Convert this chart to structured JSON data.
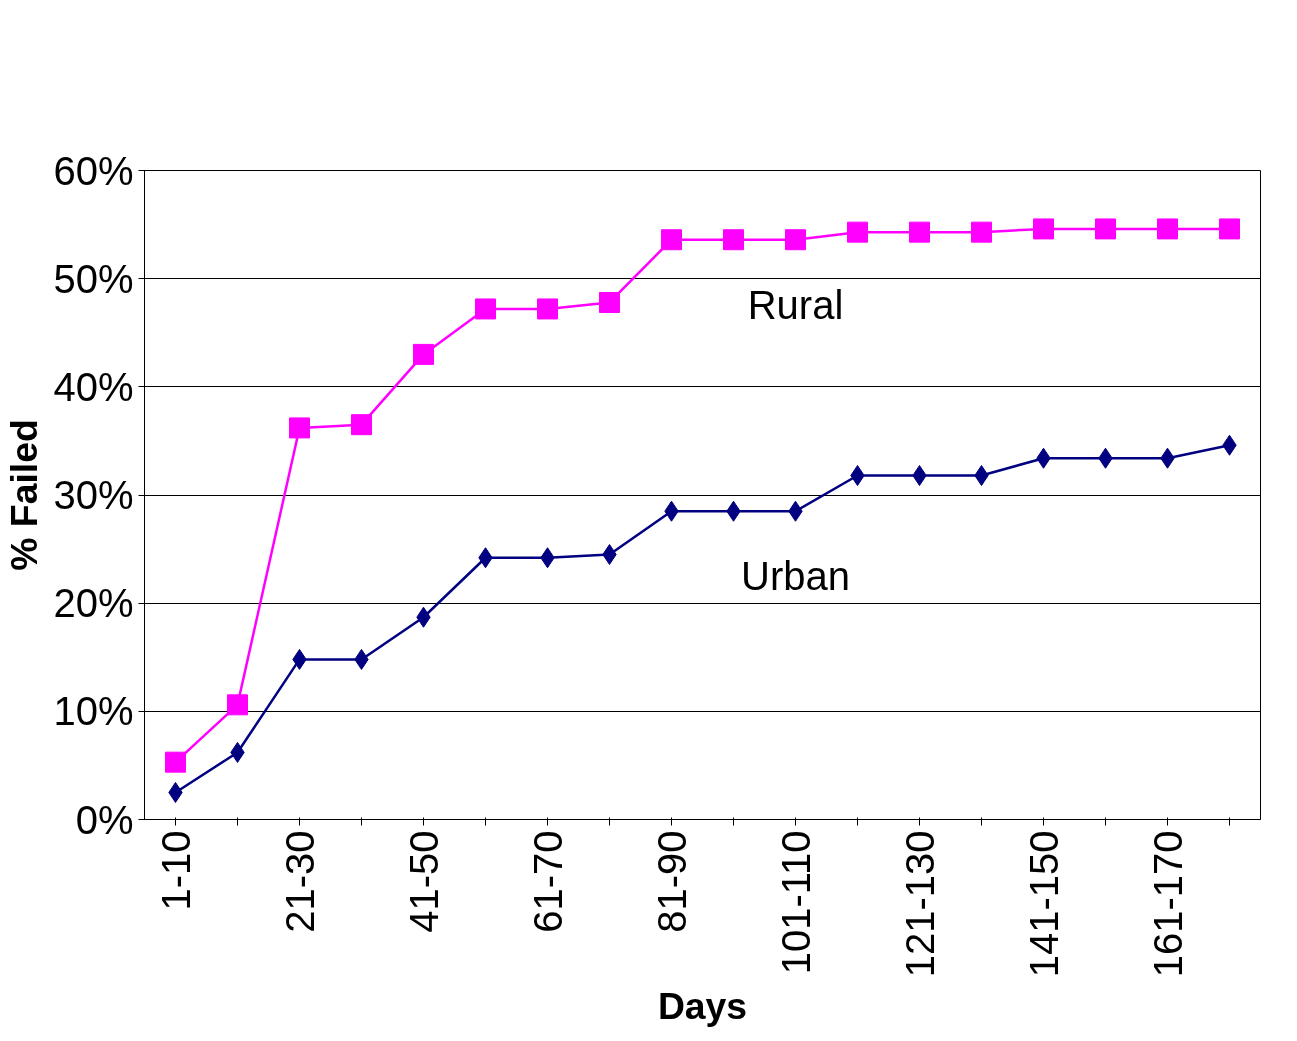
{
  "chart_data": {
    "type": "line",
    "xlabel": "Days",
    "ylabel": "% Failed",
    "categories": [
      "1-10",
      null,
      "21-30",
      null,
      "41-50",
      null,
      "61-70",
      null,
      "81-90",
      null,
      "101-110",
      null,
      "121-130",
      null,
      "141-150",
      null,
      "161-170",
      null
    ],
    "series": [
      {
        "name": "Rural",
        "color": "#ff00ff",
        "marker": "square",
        "values": [
          5.3,
          10.6,
          36.2,
          36.5,
          43.0,
          47.2,
          47.2,
          47.8,
          53.6,
          53.6,
          53.6,
          54.3,
          54.3,
          54.3,
          54.6,
          54.6,
          54.6,
          54.6
        ]
      },
      {
        "name": "Urban",
        "color": "#000080",
        "marker": "diamond",
        "values": [
          2.5,
          6.2,
          14.8,
          14.8,
          18.7,
          24.2,
          24.2,
          24.5,
          28.5,
          28.5,
          28.5,
          31.8,
          31.8,
          31.8,
          33.4,
          33.4,
          33.4,
          34.6
        ]
      }
    ],
    "ylim": [
      0,
      60
    ],
    "yticks": [
      {
        "value": 0,
        "label": "0%"
      },
      {
        "value": 10,
        "label": "10%"
      },
      {
        "value": 20,
        "label": "20%"
      },
      {
        "value": 30,
        "label": "30%"
      },
      {
        "value": 40,
        "label": "40%"
      },
      {
        "value": 50,
        "label": "50%"
      },
      {
        "value": 60,
        "label": "60%"
      }
    ],
    "grid": "y"
  }
}
